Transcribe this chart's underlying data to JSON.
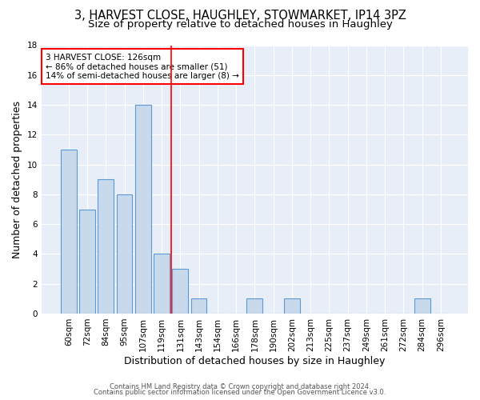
{
  "title_line1": "3, HARVEST CLOSE, HAUGHLEY, STOWMARKET, IP14 3PZ",
  "title_line2": "Size of property relative to detached houses in Haughley",
  "xlabel": "Distribution of detached houses by size in Haughley",
  "ylabel": "Number of detached properties",
  "categories": [
    "60sqm",
    "72sqm",
    "84sqm",
    "95sqm",
    "107sqm",
    "119sqm",
    "131sqm",
    "143sqm",
    "154sqm",
    "166sqm",
    "178sqm",
    "190sqm",
    "202sqm",
    "213sqm",
    "225sqm",
    "237sqm",
    "249sqm",
    "261sqm",
    "272sqm",
    "284sqm",
    "296sqm"
  ],
  "values": [
    11,
    7,
    9,
    8,
    14,
    4,
    3,
    1,
    0,
    0,
    1,
    0,
    1,
    0,
    0,
    0,
    0,
    0,
    0,
    1,
    0
  ],
  "bar_color": "#c9d9ec",
  "bar_edge_color": "#5b9bd5",
  "red_line_x": 5.5,
  "annotation_text": "3 HARVEST CLOSE: 126sqm\n← 86% of detached houses are smaller (51)\n14% of semi-detached houses are larger (8) →",
  "annotation_box_color": "white",
  "annotation_box_edge": "red",
  "ylim": [
    0,
    18
  ],
  "yticks": [
    0,
    2,
    4,
    6,
    8,
    10,
    12,
    14,
    16,
    18
  ],
  "background_color": "#e8eef7",
  "grid_color": "white",
  "footer_line1": "Contains HM Land Registry data © Crown copyright and database right 2024.",
  "footer_line2": "Contains public sector information licensed under the Open Government Licence v3.0.",
  "title_fontsize": 10.5,
  "subtitle_fontsize": 9.5,
  "xlabel_fontsize": 9,
  "ylabel_fontsize": 9,
  "tick_fontsize": 7.5,
  "annotation_fontsize": 7.5,
  "footer_fontsize": 6.0
}
